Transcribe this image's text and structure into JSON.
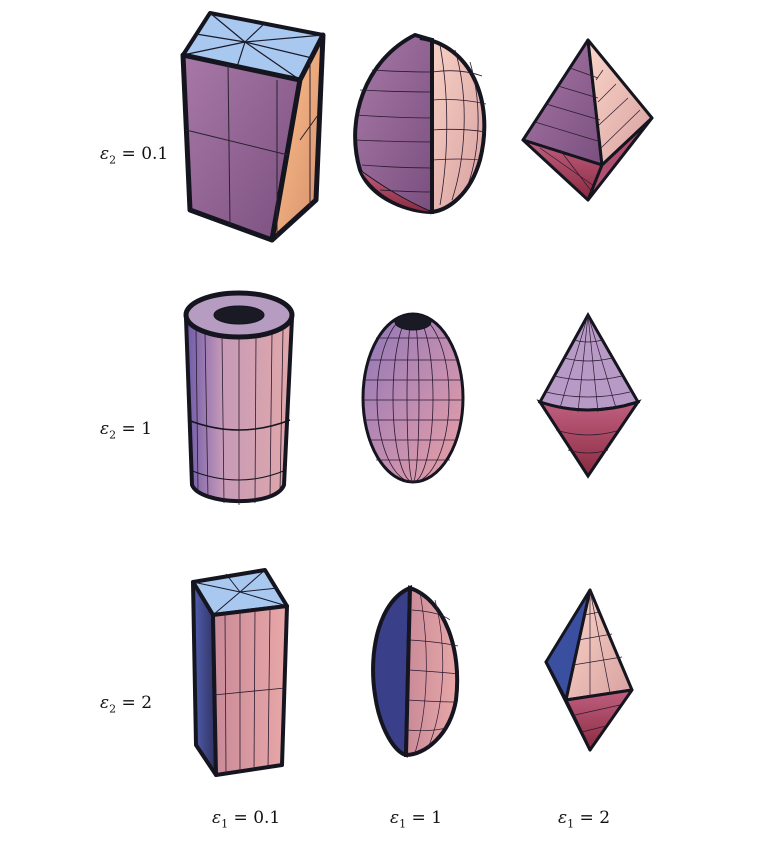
{
  "title": "",
  "row_labels": [
    {
      "symbol": "ε",
      "sub": "2",
      "rel": " = ",
      "value": "0.1"
    },
    {
      "symbol": "ε",
      "sub": "2",
      "rel": " = ",
      "value": "1"
    },
    {
      "symbol": "ε",
      "sub": "2",
      "rel": " = ",
      "value": "2"
    }
  ],
  "col_labels": [
    {
      "symbol": "ε",
      "sub": "1",
      "rel": " = ",
      "value": "0.1"
    },
    {
      "symbol": "ε",
      "sub": "1",
      "rel": " = ",
      "value": "1"
    },
    {
      "symbol": "ε",
      "sub": "1",
      "rel": " = ",
      "value": "2"
    }
  ],
  "colors": {
    "purple_face": "#9a6b9a",
    "orange_face": "#f2b48a",
    "blue_top": "#a9c8f0",
    "pink_face": "#d79ab0",
    "dark_edge": "#151520",
    "red_bottom": "#b04060"
  }
}
